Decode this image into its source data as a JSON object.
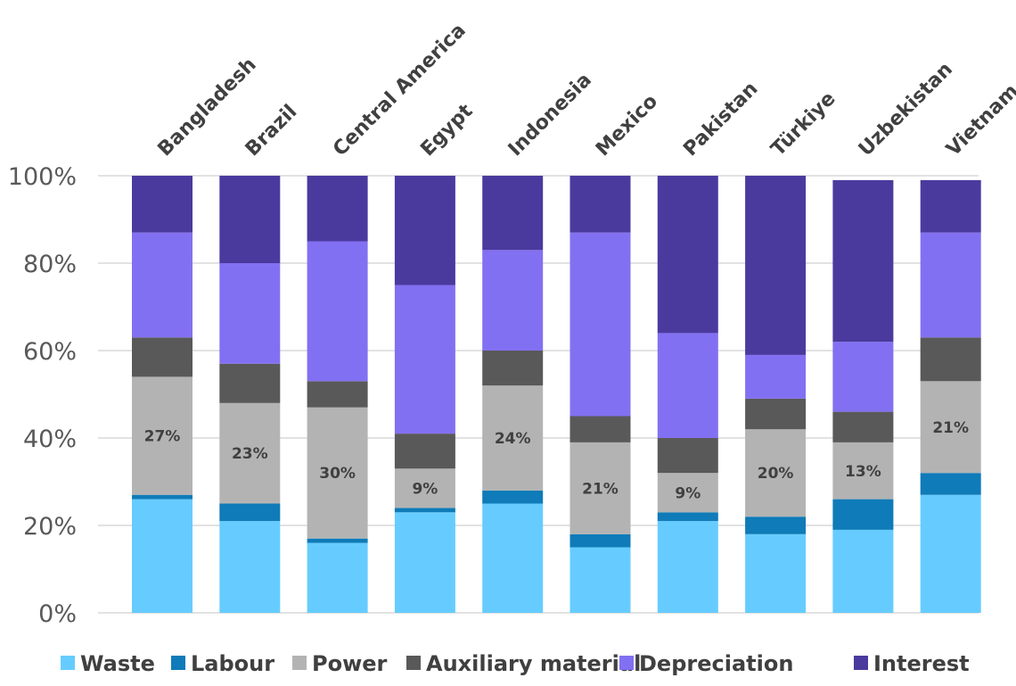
{
  "chart_data": {
    "type": "bar",
    "stacked": true,
    "categories": [
      "Bangladesh",
      "Brazil",
      "Central America",
      "Egypt",
      "Indonesia",
      "Mexico",
      "Pakistan",
      "Türkiye",
      "Uzbekistan",
      "Vietnam"
    ],
    "series": [
      {
        "name": "Waste",
        "color": "#66CCFF",
        "values": [
          26,
          21,
          16,
          23,
          25,
          15,
          21,
          18,
          19,
          27
        ]
      },
      {
        "name": "Labour",
        "color": "#0F7BB8",
        "values": [
          1,
          4,
          1,
          1,
          3,
          3,
          2,
          4,
          7,
          5
        ]
      },
      {
        "name": "Power",
        "color": "#B3B3B3",
        "values": [
          27,
          23,
          30,
          9,
          24,
          21,
          9,
          20,
          13,
          21
        ]
      },
      {
        "name": "Auxiliary material",
        "color": "#595959",
        "values": [
          9,
          9,
          6,
          8,
          8,
          6,
          8,
          7,
          7,
          10
        ]
      },
      {
        "name": "Depreciation",
        "color": "#8270F2",
        "values": [
          24,
          23,
          32,
          34,
          23,
          42,
          24,
          10,
          16,
          24
        ]
      },
      {
        "name": "Interest",
        "color": "#4B3A9E",
        "values": [
          13,
          20,
          15,
          25,
          17,
          13,
          36,
          41,
          37,
          12
        ]
      }
    ],
    "data_labels": {
      "series": "Power",
      "labels": [
        "27%",
        "23%",
        "30%",
        "9%",
        "24%",
        "21%",
        "9%",
        "20%",
        "13%",
        "21%"
      ]
    },
    "yticks": [
      "0%",
      "20%",
      "40%",
      "60%",
      "80%",
      "100%"
    ],
    "ylim": [
      0,
      100
    ],
    "grid": true,
    "legend": "bottom",
    "title": "",
    "xlabel": "",
    "ylabel": ""
  }
}
